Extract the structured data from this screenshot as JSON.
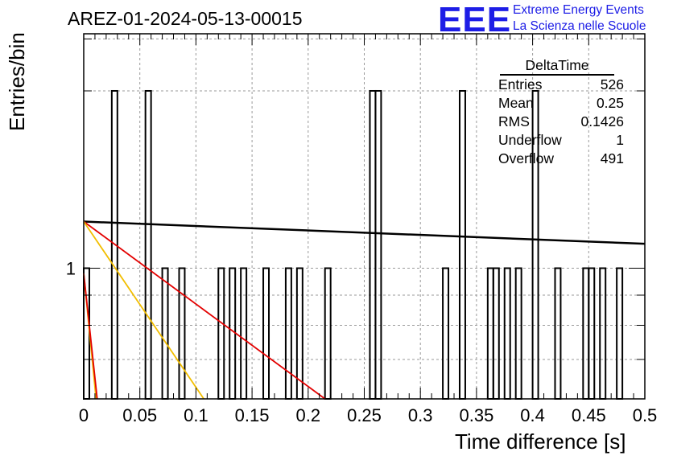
{
  "chart_data": {
    "type": "histogram",
    "title": "AREZ-01-2024-05-13-00015",
    "xlabel": "Time difference [s]",
    "ylabel": "Entries/bin",
    "xlim": [
      0,
      0.5
    ],
    "ylim": [
      0.6,
      2.5
    ],
    "log_y": true,
    "grid": true,
    "x_ticks": [
      "0",
      "0.05",
      "0.1",
      "0.15",
      "0.2",
      "0.25",
      "0.3",
      "0.35",
      "0.4",
      "0.45",
      "0.5"
    ],
    "y_tick_label": "1",
    "bin_width": 0.005,
    "bins": [
      {
        "x": 0.0,
        "y": 1
      },
      {
        "x": 0.025,
        "y": 2
      },
      {
        "x": 0.055,
        "y": 2
      },
      {
        "x": 0.07,
        "y": 1
      },
      {
        "x": 0.085,
        "y": 1
      },
      {
        "x": 0.12,
        "y": 1
      },
      {
        "x": 0.13,
        "y": 1
      },
      {
        "x": 0.14,
        "y": 1
      },
      {
        "x": 0.16,
        "y": 1
      },
      {
        "x": 0.18,
        "y": 1
      },
      {
        "x": 0.19,
        "y": 1
      },
      {
        "x": 0.215,
        "y": 1
      },
      {
        "x": 0.255,
        "y": 2
      },
      {
        "x": 0.26,
        "y": 2
      },
      {
        "x": 0.32,
        "y": 1
      },
      {
        "x": 0.335,
        "y": 2
      },
      {
        "x": 0.36,
        "y": 1
      },
      {
        "x": 0.365,
        "y": 1
      },
      {
        "x": 0.375,
        "y": 1
      },
      {
        "x": 0.385,
        "y": 1
      },
      {
        "x": 0.4,
        "y": 2
      },
      {
        "x": 0.42,
        "y": 1
      },
      {
        "x": 0.445,
        "y": 1
      },
      {
        "x": 0.45,
        "y": 1
      },
      {
        "x": 0.46,
        "y": 1
      },
      {
        "x": 0.475,
        "y": 1
      }
    ],
    "fit_lines": [
      {
        "color": "#000000",
        "points": [
          [
            0,
            1.2
          ],
          [
            0.5,
            1.1
          ]
        ]
      },
      {
        "color": "#e30000",
        "points": [
          [
            0,
            1.2
          ],
          [
            0.215,
            0.6
          ]
        ]
      },
      {
        "color": "#f2be00",
        "points": [
          [
            0,
            1.2
          ],
          [
            0.107,
            0.6
          ]
        ]
      },
      {
        "color": "#f2be00",
        "points": [
          [
            0,
            0.98
          ],
          [
            0.011,
            0.6
          ]
        ]
      },
      {
        "color": "#e30000",
        "points": [
          [
            0,
            0.98
          ],
          [
            0.012,
            0.6
          ]
        ]
      }
    ],
    "stats_box": {
      "name": "DeltaTime",
      "rows": [
        {
          "label": "Entries",
          "value": "526"
        },
        {
          "label": "Mean",
          "value": "0.25"
        },
        {
          "label": "RMS",
          "value": "0.1426"
        },
        {
          "label": "Underflow",
          "value": "1"
        },
        {
          "label": "Overflow",
          "value": "491"
        }
      ]
    }
  },
  "logo": {
    "text": "EEE",
    "line1": "Extreme Energy Events",
    "line2": "La Scienza nelle Scuole"
  }
}
